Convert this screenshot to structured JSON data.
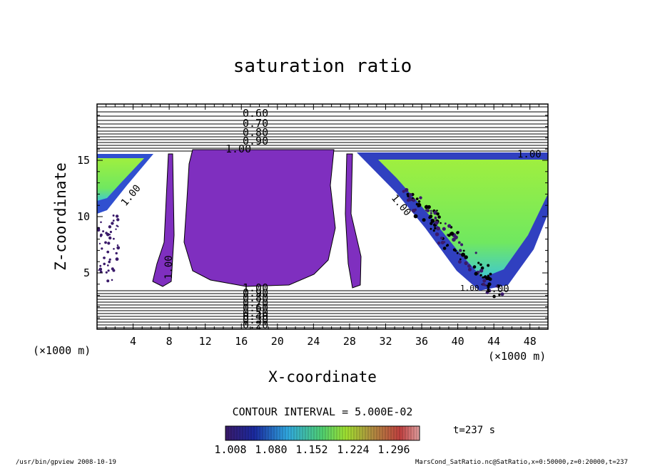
{
  "chart_data": {
    "type": "contour",
    "title": "saturation ratio",
    "xlabel": "X-coordinate",
    "ylabel": "Z-coordinate",
    "x_unit_left": "(×1000 m)",
    "x_unit_right": "(×1000 m)",
    "xlim": [
      0,
      50
    ],
    "ylim": [
      0,
      20
    ],
    "x_ticks": [
      4,
      8,
      12,
      16,
      20,
      24,
      28,
      32,
      36,
      40,
      44,
      48
    ],
    "y_ticks": [
      5,
      10,
      15
    ],
    "contour_interval": "CONTOUR INTERVAL = 5.000E-02",
    "time_label": "t=237 s",
    "colorbar_ticks": [
      "1.008",
      "1.080",
      "1.152",
      "1.224",
      "1.296"
    ],
    "contour_labels_top": [
      "0.60",
      "0.70",
      "0.80",
      "0.90",
      "1.00"
    ],
    "contour_labels_bottom": [
      "1.00",
      "0.90",
      "0.80",
      "0.70",
      "0.60",
      "0.50",
      "0.40",
      "0.30",
      "0.20"
    ],
    "contour_labels_inner": [
      "1.00",
      "1.00",
      "1.00",
      "1.00",
      "1.00",
      "1.00"
    ],
    "colors": {
      "supersat_low": "#7f2fbf",
      "supersat_high": "#9fef3f",
      "contour_line": "#000000"
    }
  },
  "footer": {
    "left": "/usr/bin/gpview  2008-10-19",
    "right": "MarsCond_SatRatio.nc@SatRatio,x=0:50000,z=0:20000,t=237"
  }
}
